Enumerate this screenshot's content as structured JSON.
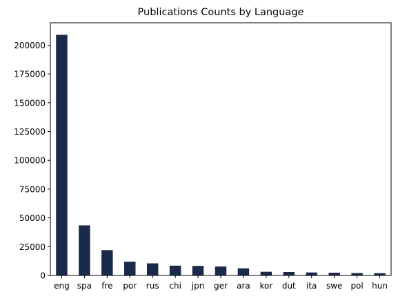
{
  "chart_data": {
    "type": "bar",
    "title": "Publications Counts by Language",
    "xlabel": "",
    "ylabel": "",
    "categories": [
      "eng",
      "spa",
      "fre",
      "por",
      "rus",
      "chi",
      "jpn",
      "ger",
      "ara",
      "kor",
      "dut",
      "ita",
      "swe",
      "pol",
      "hun"
    ],
    "values": [
      209000,
      43500,
      22000,
      12000,
      10500,
      8500,
      8300,
      7800,
      6200,
      3200,
      3000,
      2600,
      2400,
      2100,
      2000
    ],
    "ylim": [
      0,
      219450
    ],
    "yticks": [
      0,
      25000,
      50000,
      75000,
      100000,
      125000,
      150000,
      175000,
      200000
    ],
    "bar_color": "#1b2a4a",
    "grid": false,
    "legend": "none"
  }
}
